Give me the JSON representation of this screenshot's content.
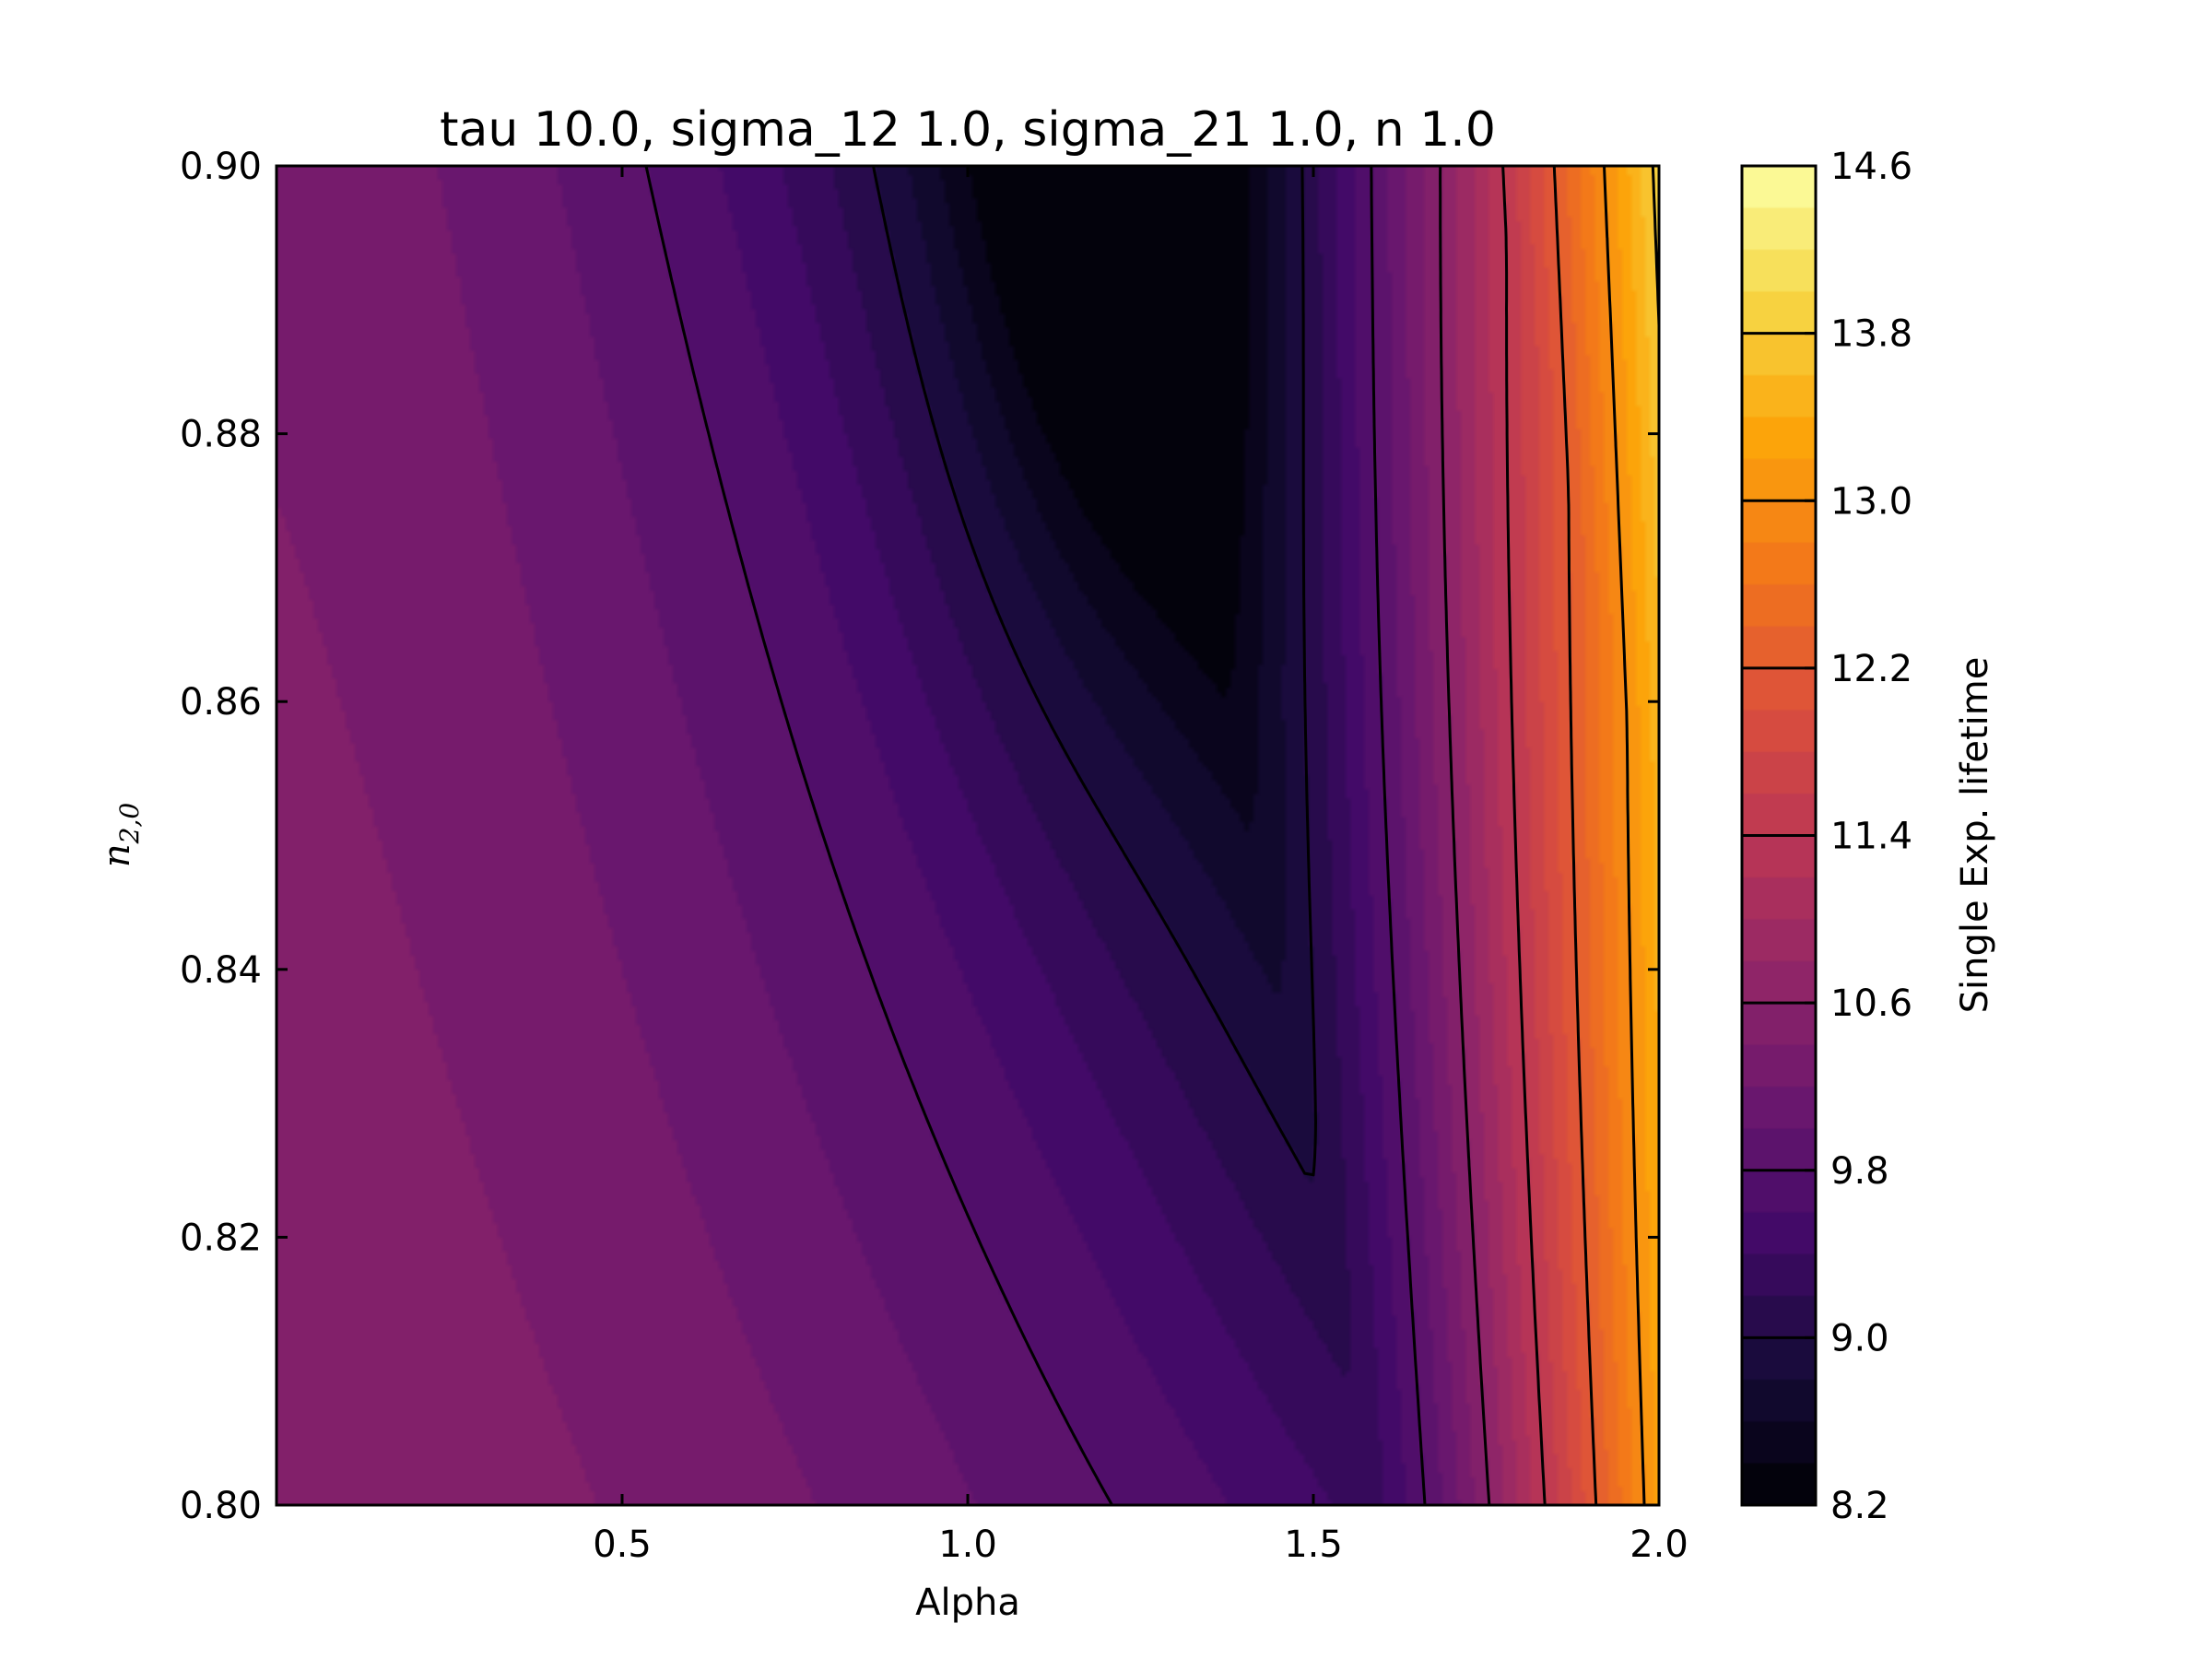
{
  "chart_data": {
    "type": "heatmap",
    "subtype": "filled-contour",
    "title": "tau 10.0, sigma_12 1.0, sigma_21 1.0, n 1.0",
    "xlabel": "Alpha",
    "ylabel": "n_{2,0}",
    "ylabel_base": "n",
    "ylabel_sub": "2,0",
    "xlim": [
      0.0,
      2.0
    ],
    "ylim": [
      0.8,
      0.9
    ],
    "xticks": [
      0.5,
      1.0,
      1.5,
      2.0
    ],
    "xtick_labels": [
      "0.5",
      "1.0",
      "1.5",
      "2.0"
    ],
    "yticks": [
      0.8,
      0.82,
      0.84,
      0.86,
      0.88,
      0.9
    ],
    "ytick_labels": [
      "0.80",
      "0.82",
      "0.84",
      "0.86",
      "0.88",
      "0.90"
    ],
    "colorbar": {
      "label": "Single Exp. lifetime",
      "range": [
        8.2,
        14.6
      ],
      "ticks": [
        8.2,
        9.0,
        9.8,
        10.6,
        11.4,
        12.2,
        13.0,
        13.8,
        14.6
      ],
      "tick_labels": [
        "8.2",
        "9.0",
        "9.8",
        "10.6",
        "11.4",
        "12.2",
        "13.0",
        "13.8",
        "14.6"
      ],
      "fill_step": 0.2,
      "line_step": 0.8,
      "colormap": "inferno"
    },
    "valley_minimum": {
      "alpha": 1.25,
      "n20": 0.895,
      "value": 8.2
    },
    "z_samples": [
      {
        "alpha": 0.0,
        "n20": 0.8,
        "value": 10.55
      },
      {
        "alpha": 0.0,
        "n20": 0.9,
        "value": 10.35
      },
      {
        "alpha": 0.2,
        "n20": 0.9,
        "value": 9.8
      },
      {
        "alpha": 1.0,
        "n20": 0.85,
        "value": 9.4
      },
      {
        "alpha": 1.25,
        "n20": 0.895,
        "value": 8.2
      },
      {
        "alpha": 1.42,
        "n20": 0.852,
        "value": 9.0
      },
      {
        "alpha": 1.65,
        "n20": 0.805,
        "value": 9.8
      },
      {
        "alpha": 1.8,
        "n20": 0.85,
        "value": 12.0
      },
      {
        "alpha": 2.0,
        "n20": 0.9,
        "value": 14.6
      },
      {
        "alpha": 2.0,
        "n20": 0.8,
        "value": 13.0
      }
    ],
    "colors": {
      "axes": "#000000",
      "contour_line": "#000000",
      "background": "#ffffff"
    }
  }
}
